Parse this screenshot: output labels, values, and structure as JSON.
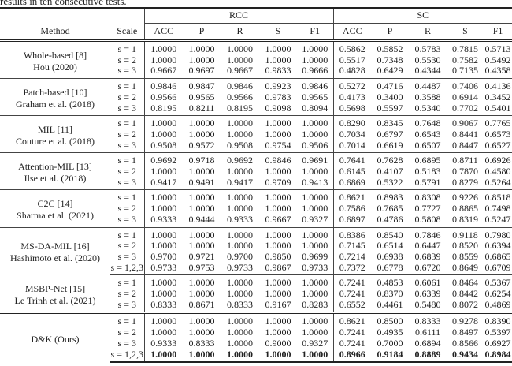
{
  "caption": "results in ten consecutive tests.",
  "headers": {
    "method": "Method",
    "scale": "Scale",
    "group1": "RCC",
    "group2": "SC",
    "metrics": [
      "ACC",
      "P",
      "R",
      "S",
      "F1"
    ]
  },
  "groups": [
    {
      "method": [
        "Whole-based [8]",
        "Hou (2020)"
      ],
      "rows": [
        {
          "scale": "s = 1",
          "values": [
            "1.0000",
            "1.0000",
            "1.0000",
            "1.0000",
            "1.0000",
            "0.5862",
            "0.5852",
            "0.5783",
            "0.7815",
            "0.5713"
          ]
        },
        {
          "scale": "s = 2",
          "values": [
            "1.0000",
            "1.0000",
            "1.0000",
            "1.0000",
            "1.0000",
            "0.5517",
            "0.7348",
            "0.5530",
            "0.7582",
            "0.5492"
          ]
        },
        {
          "scale": "s = 3",
          "values": [
            "0.9667",
            "0.9697",
            "0.9667",
            "0.9833",
            "0.9666",
            "0.4828",
            "0.6429",
            "0.4344",
            "0.7135",
            "0.4358"
          ]
        }
      ]
    },
    {
      "method": [
        "Patch-based [10]",
        "Graham et al. (2018)"
      ],
      "rows": [
        {
          "scale": "s = 1",
          "values": [
            "0.9846",
            "0.9847",
            "0.9846",
            "0.9923",
            "0.9846",
            "0.5272",
            "0.4716",
            "0.4487",
            "0.7406",
            "0.4136"
          ]
        },
        {
          "scale": "s = 2",
          "values": [
            "0.9566",
            "0.9565",
            "0.9566",
            "0.9783",
            "0.9565",
            "0.4173",
            "0.3400",
            "0.3588",
            "0.6914",
            "0.3452"
          ]
        },
        {
          "scale": "s = 3",
          "values": [
            "0.8195",
            "0.8211",
            "0.8195",
            "0.9098",
            "0.8094",
            "0.5698",
            "0.5597",
            "0.5340",
            "0.7702",
            "0.5401"
          ]
        }
      ]
    },
    {
      "method": [
        "MIL [11]",
        "Couture et al. (2018)"
      ],
      "rows": [
        {
          "scale": "s = 1",
          "values": [
            "1.0000",
            "1.0000",
            "1.0000",
            "1.0000",
            "1.0000",
            "0.8290",
            "0.8345",
            "0.7648",
            "0.9067",
            "0.7765"
          ]
        },
        {
          "scale": "s = 2",
          "values": [
            "1.0000",
            "1.0000",
            "1.0000",
            "1.0000",
            "1.0000",
            "0.7034",
            "0.6797",
            "0.6543",
            "0.8441",
            "0.6573"
          ]
        },
        {
          "scale": "s = 3",
          "values": [
            "0.9508",
            "0.9572",
            "0.9508",
            "0.9754",
            "0.9506",
            "0.7014",
            "0.6619",
            "0.6507",
            "0.8447",
            "0.6527"
          ]
        }
      ]
    },
    {
      "method": [
        "Attention-MIL [13]",
        "Ilse et al. (2018)"
      ],
      "rows": [
        {
          "scale": "s = 1",
          "values": [
            "0.9692",
            "0.9718",
            "0.9692",
            "0.9846",
            "0.9691",
            "0.7641",
            "0.7628",
            "0.6895",
            "0.8711",
            "0.6926"
          ]
        },
        {
          "scale": "s = 2",
          "values": [
            "1.0000",
            "1.0000",
            "1.0000",
            "1.0000",
            "1.0000",
            "0.6145",
            "0.4107",
            "0.5183",
            "0.7870",
            "0.4580"
          ]
        },
        {
          "scale": "s = 3",
          "values": [
            "0.9417",
            "0.9491",
            "0.9417",
            "0.9709",
            "0.9413",
            "0.6869",
            "0.5322",
            "0.5791",
            "0.8279",
            "0.5264"
          ]
        }
      ]
    },
    {
      "method": [
        "C2C [14]",
        "Sharma et al. (2021)"
      ],
      "rows": [
        {
          "scale": "s = 1",
          "values": [
            "1.0000",
            "1.0000",
            "1.0000",
            "1.0000",
            "1.0000",
            "0.8621",
            "0.8983",
            "0.8308",
            "0.9226",
            "0.8518"
          ]
        },
        {
          "scale": "s = 2",
          "values": [
            "1.0000",
            "1.0000",
            "1.0000",
            "1.0000",
            "1.0000",
            "0.7586",
            "0.7685",
            "0.7727",
            "0.8865",
            "0.7498"
          ]
        },
        {
          "scale": "s = 3",
          "values": [
            "0.9333",
            "0.9444",
            "0.9333",
            "0.9667",
            "0.9327",
            "0.6897",
            "0.4786",
            "0.5808",
            "0.8319",
            "0.5247"
          ]
        }
      ]
    },
    {
      "method": [
        "MS-DA-MIL [16]",
        "Hashimoto et al. (2020)"
      ],
      "rows": [
        {
          "scale": "s = 1",
          "values": [
            "1.0000",
            "1.0000",
            "1.0000",
            "1.0000",
            "1.0000",
            "0.8386",
            "0.8540",
            "0.7846",
            "0.9118",
            "0.7980"
          ]
        },
        {
          "scale": "s = 2",
          "values": [
            "1.0000",
            "1.0000",
            "1.0000",
            "1.0000",
            "1.0000",
            "0.7145",
            "0.6514",
            "0.6447",
            "0.8520",
            "0.6394"
          ]
        },
        {
          "scale": "s = 3",
          "values": [
            "0.9700",
            "0.9721",
            "0.9700",
            "0.9850",
            "0.9699",
            "0.7214",
            "0.6938",
            "0.6839",
            "0.8559",
            "0.6865"
          ]
        },
        {
          "scale": "s = 1,2,3",
          "values": [
            "0.9733",
            "0.9753",
            "0.9733",
            "0.9867",
            "0.9733",
            "0.7372",
            "0.6778",
            "0.6720",
            "0.8649",
            "0.6709"
          ]
        }
      ]
    },
    {
      "method": [
        "MSBP-Net [15]",
        "Le Trinh et al. (2021)"
      ],
      "sep": "partial",
      "rows": [
        {
          "scale": "s = 1",
          "values": [
            "1.0000",
            "1.0000",
            "1.0000",
            "1.0000",
            "1.0000",
            "0.7241",
            "0.4853",
            "0.6061",
            "0.8464",
            "0.5367"
          ]
        },
        {
          "scale": "s = 2",
          "values": [
            "1.0000",
            "1.0000",
            "1.0000",
            "1.0000",
            "1.0000",
            "0.7241",
            "0.8370",
            "0.6339",
            "0.8442",
            "0.6254"
          ]
        },
        {
          "scale": "s = 3",
          "values": [
            "0.8333",
            "0.8671",
            "0.8333",
            "0.9167",
            "0.8283",
            "0.6552",
            "0.4461",
            "0.5480",
            "0.8072",
            "0.4869"
          ]
        }
      ]
    },
    {
      "method": [
        "D&K (Ours)"
      ],
      "sep": "double",
      "rows": [
        {
          "scale": "s = 1",
          "values": [
            "1.0000",
            "1.0000",
            "1.0000",
            "1.0000",
            "1.0000",
            "0.8621",
            "0.8500",
            "0.8333",
            "0.9278",
            "0.8390"
          ]
        },
        {
          "scale": "s = 2",
          "values": [
            "1.0000",
            "1.0000",
            "1.0000",
            "1.0000",
            "1.0000",
            "0.7241",
            "0.4935",
            "0.6111",
            "0.8497",
            "0.5397"
          ]
        },
        {
          "scale": "s = 3",
          "values": [
            "0.9333",
            "0.8333",
            "1.0000",
            "0.9000",
            "0.9327",
            "0.7241",
            "0.7000",
            "0.6894",
            "0.8566",
            "0.6927"
          ]
        },
        {
          "scale": "s = 1,2,3",
          "bold": true,
          "values": [
            "1.0000",
            "1.0000",
            "1.0000",
            "1.0000",
            "1.0000",
            "0.8966",
            "0.9184",
            "0.8889",
            "0.9434",
            "0.8984"
          ]
        }
      ]
    }
  ]
}
